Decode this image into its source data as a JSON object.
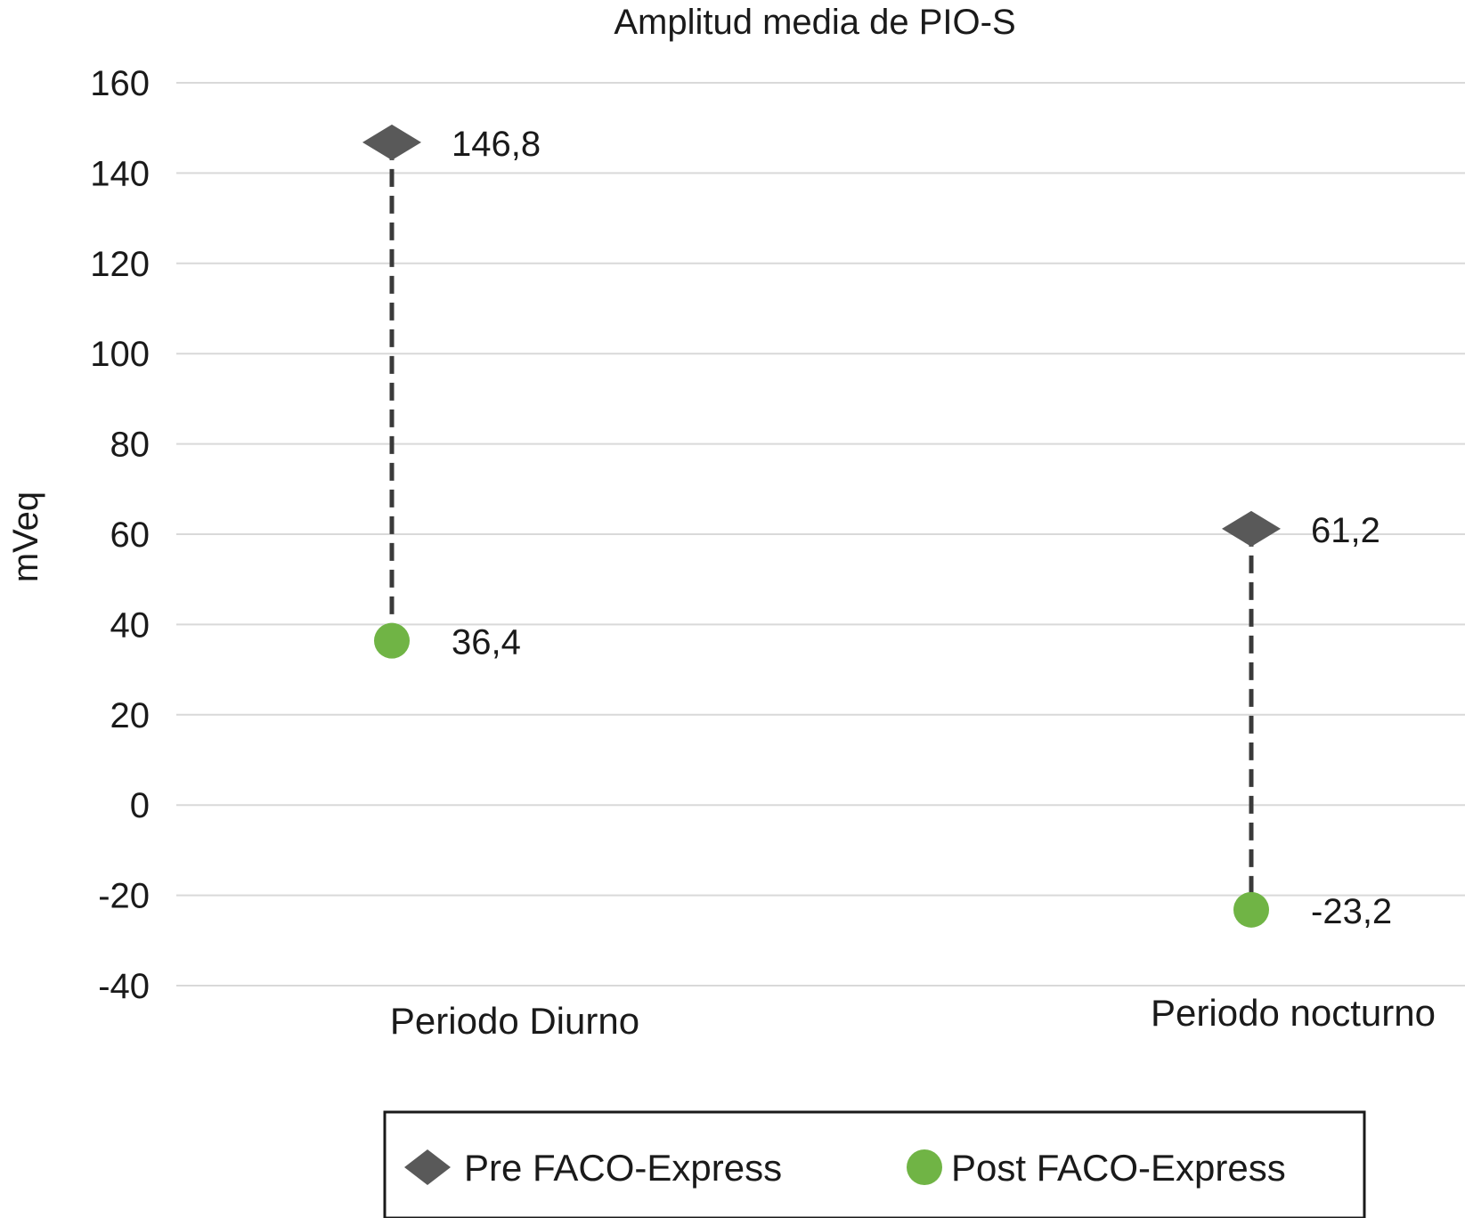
{
  "chart_data": {
    "type": "scatter",
    "title": "Amplitud media de PIO-S",
    "ylabel": "mVeq",
    "xlabel": "",
    "ylim": [
      -40,
      160
    ],
    "yticks": [
      160,
      140,
      120,
      100,
      80,
      60,
      40,
      20,
      0,
      -20,
      -40
    ],
    "ytick_labels": [
      "160",
      "140",
      "120",
      "100",
      "80",
      "60",
      "40",
      "20",
      "0",
      "-20",
      "-40"
    ],
    "categories": [
      "Periodo Diurno",
      "Periodo nocturno"
    ],
    "grid": true,
    "legend_position": "bottom",
    "series": [
      {
        "name": "Pre FACO-Express",
        "marker": "diamond",
        "color": "#595959",
        "values": [
          146.8,
          61.2
        ],
        "labels": [
          "146,8",
          "61,2"
        ]
      },
      {
        "name": "Post FACO-Express",
        "marker": "circle",
        "color": "#70b445",
        "values": [
          36.4,
          -23.2
        ],
        "labels": [
          "36,4",
          "-23,2"
        ]
      }
    ],
    "connector": {
      "style": "dashed",
      "color": "#3a3a3a"
    },
    "gridline_color": "#d9d9d9",
    "legend_border_color": "#1a1a1a"
  }
}
